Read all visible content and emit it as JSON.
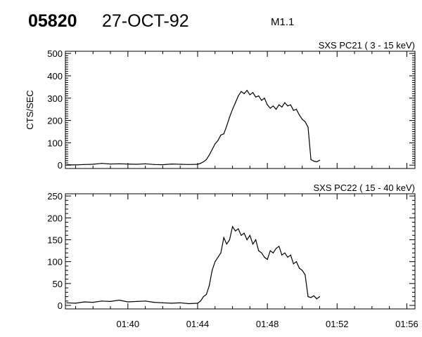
{
  "header": {
    "event_id": "05820",
    "date": "27-OCT-92",
    "flare_class": "M1.1"
  },
  "chart_data": [
    {
      "type": "line",
      "title": "SXS PC21  (  3 - 15 keV)",
      "ylabel": "CTS/SEC",
      "xlabel": "",
      "ylim": [
        -15,
        510
      ],
      "xlim": [
        "01:36:25",
        "01:56:28"
      ],
      "yticks": [
        "0",
        "100",
        "200",
        "300",
        "400",
        "500"
      ],
      "xticks": [],
      "x": [
        "01:36:30",
        "01:37:00",
        "01:37:30",
        "01:38:00",
        "01:38:30",
        "01:39:00",
        "01:39:30",
        "01:40:00",
        "01:40:30",
        "01:41:00",
        "01:41:30",
        "01:42:00",
        "01:42:30",
        "01:43:00",
        "01:43:30",
        "01:44:00",
        "01:44:10",
        "01:44:20",
        "01:44:30",
        "01:44:40",
        "01:44:50",
        "01:45:00",
        "01:45:10",
        "01:45:20",
        "01:45:30",
        "01:45:40",
        "01:45:50",
        "01:46:00",
        "01:46:10",
        "01:46:20",
        "01:46:30",
        "01:46:40",
        "01:46:50",
        "01:47:00",
        "01:47:10",
        "01:47:20",
        "01:47:30",
        "01:47:40",
        "01:47:50",
        "01:48:00",
        "01:48:10",
        "01:48:20",
        "01:48:30",
        "01:48:40",
        "01:48:50",
        "01:49:00",
        "01:49:10",
        "01:49:20",
        "01:49:30",
        "01:49:40",
        "01:49:50",
        "01:50:00",
        "01:50:10",
        "01:50:20",
        "01:50:30",
        "01:50:40",
        "01:50:50",
        "01:51:00"
      ],
      "values": [
        2,
        1,
        3,
        4,
        8,
        5,
        6,
        5,
        4,
        6,
        3,
        2,
        5,
        4,
        3,
        4,
        8,
        15,
        25,
        45,
        70,
        95,
        110,
        135,
        140,
        175,
        215,
        250,
        280,
        310,
        330,
        320,
        335,
        315,
        325,
        305,
        310,
        290,
        300,
        270,
        255,
        265,
        250,
        270,
        260,
        280,
        265,
        270,
        245,
        250,
        225,
        205,
        195,
        170,
        25,
        18,
        15,
        22
      ]
    },
    {
      "type": "line",
      "title": "SXS PC22  ( 15 - 40 keV)",
      "ylabel": "",
      "xlabel": "",
      "ylim": [
        -8,
        255
      ],
      "xlim": [
        "01:36:25",
        "01:56:28"
      ],
      "yticks": [
        "0",
        "50",
        "100",
        "150",
        "200",
        "250"
      ],
      "xticks": [
        "01:40",
        "01:44",
        "01:48",
        "01:52",
        "01:56"
      ],
      "x": [
        "01:36:30",
        "01:37:00",
        "01:37:30",
        "01:38:00",
        "01:38:30",
        "01:39:00",
        "01:39:30",
        "01:40:00",
        "01:40:30",
        "01:41:00",
        "01:41:30",
        "01:42:00",
        "01:42:30",
        "01:43:00",
        "01:43:30",
        "01:44:00",
        "01:44:10",
        "01:44:20",
        "01:44:30",
        "01:44:40",
        "01:44:50",
        "01:45:00",
        "01:45:10",
        "01:45:20",
        "01:45:30",
        "01:45:40",
        "01:45:50",
        "01:46:00",
        "01:46:10",
        "01:46:20",
        "01:46:30",
        "01:46:40",
        "01:46:50",
        "01:47:00",
        "01:47:10",
        "01:47:20",
        "01:47:30",
        "01:47:40",
        "01:47:50",
        "01:48:00",
        "01:48:10",
        "01:48:20",
        "01:48:30",
        "01:48:40",
        "01:48:50",
        "01:49:00",
        "01:49:10",
        "01:49:20",
        "01:49:30",
        "01:49:40",
        "01:49:50",
        "01:50:00",
        "01:50:10",
        "01:50:20",
        "01:50:30",
        "01:50:40",
        "01:50:50",
        "01:51:00"
      ],
      "values": [
        6,
        5,
        8,
        7,
        10,
        9,
        12,
        8,
        9,
        10,
        7,
        6,
        5,
        6,
        4,
        5,
        10,
        20,
        25,
        45,
        80,
        100,
        110,
        120,
        155,
        140,
        150,
        180,
        170,
        175,
        160,
        165,
        150,
        160,
        140,
        150,
        125,
        120,
        110,
        105,
        125,
        120,
        130,
        135,
        115,
        120,
        110,
        115,
        95,
        100,
        85,
        80,
        70,
        20,
        18,
        22,
        15,
        20
      ]
    }
  ]
}
